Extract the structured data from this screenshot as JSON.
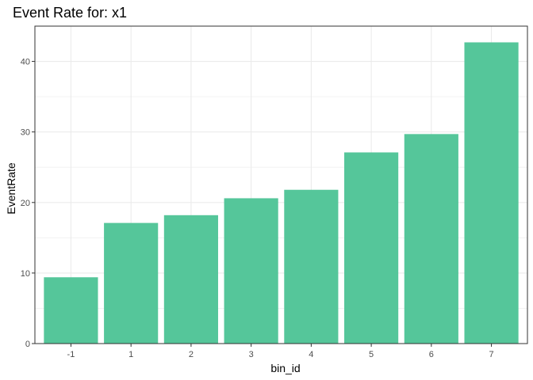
{
  "chart_data": {
    "type": "bar",
    "title": "Event Rate for: x1",
    "xlabel": "bin_id",
    "ylabel": "EventRate",
    "categories": [
      "-1",
      "1",
      "2",
      "3",
      "4",
      "5",
      "6",
      "7"
    ],
    "values": [
      9.4,
      17.1,
      18.2,
      20.6,
      21.8,
      27.1,
      29.7,
      42.7
    ],
    "ylim": [
      0,
      45
    ],
    "yticks": [
      0,
      10,
      20,
      30,
      40
    ],
    "grid": true,
    "bar_color": "#55C69A",
    "grid_color": "#EBEBEB",
    "panel_border_color": "#333333"
  }
}
